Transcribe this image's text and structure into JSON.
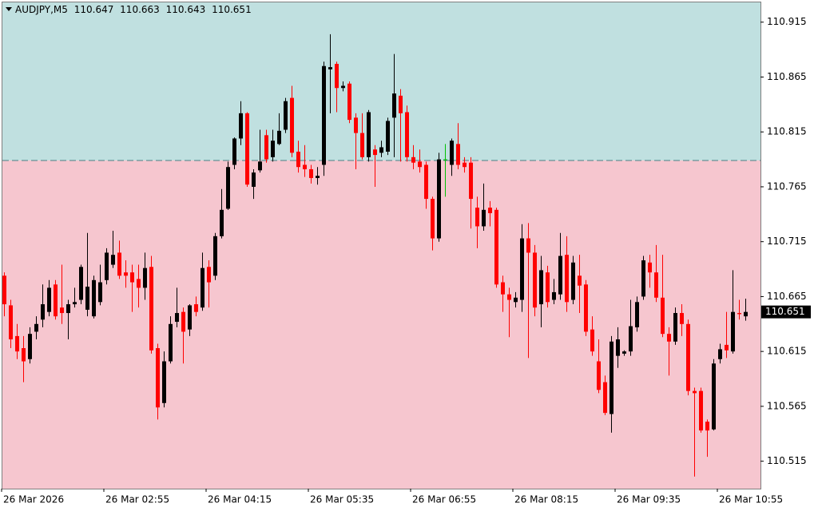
{
  "chart_data": {
    "type": "candlestick",
    "title": "AUDJPY,M5",
    "ylim": [
      110.49,
      110.933
    ],
    "yticks": [
      110.915,
      110.865,
      110.815,
      110.765,
      110.715,
      110.665,
      110.615,
      110.565,
      110.515
    ],
    "xticks": [
      {
        "value": 0,
        "label": "26 Mar 2026"
      },
      {
        "value": 16,
        "label": "26 Mar 02:55"
      },
      {
        "value": 32,
        "label": "26 Mar 04:15"
      },
      {
        "value": 48,
        "label": "26 Mar 05:35"
      },
      {
        "value": 64,
        "label": "26 Mar 06:55"
      },
      {
        "value": 80,
        "label": "26 Mar 08:15"
      },
      {
        "value": 96,
        "label": "26 Mar 09:35"
      },
      {
        "value": 112,
        "label": "26 Mar 10:55"
      }
    ],
    "level": 110.789,
    "above_color": "#c0e0e0",
    "below_color": "#f6c6cf",
    "up_color": "#000000",
    "down_color": "#ff0000",
    "doji_color": "#00c000",
    "open": [
      110.684,
      110.657,
      110.629,
      110.618,
      110.608,
      110.633,
      110.644,
      110.651,
      110.676,
      110.655,
      110.65,
      110.658,
      110.662,
      110.653,
      110.647,
      110.66,
      110.68,
      110.694,
      110.705,
      110.687,
      110.687,
      110.681,
      110.673,
      110.692,
      110.618,
      110.568,
      110.606,
      110.642,
      110.651,
      110.635,
      110.658,
      110.655,
      110.692,
      110.684,
      110.72,
      110.745,
      110.785,
      110.809,
      110.832,
      110.765,
      110.78,
      110.812,
      110.792,
      110.804,
      110.817,
      110.846,
      110.797,
      110.785,
      110.781,
      110.773,
      110.785,
      110.872,
      110.877,
      110.855,
      110.859,
      110.828,
      110.814,
      110.792,
      110.799,
      110.796,
      110.797,
      110.828,
      110.848,
      110.833,
      110.792,
      110.788,
      110.785,
      110.754,
      110.718,
      110.79,
      110.785,
      110.804,
      110.787,
      110.787,
      110.746,
      110.729,
      110.746,
      110.744,
      110.678,
      110.667,
      110.66,
      110.662,
      110.718,
      110.705,
      110.658,
      110.687,
      110.662,
      110.667,
      110.703,
      110.662,
      110.684,
      110.676,
      110.635,
      110.606,
      110.587,
      110.558,
      110.611,
      110.613,
      110.615,
      110.637,
      110.665,
      110.696,
      110.687,
      110.664,
      110.631,
      110.624,
      110.65,
      110.64,
      110.579,
      110.579,
      110.551,
      110.544,
      110.608,
      110.621,
      110.615,
      110.65,
      110.647
    ],
    "high": [
      110.687,
      110.662,
      110.64,
      110.629,
      110.637,
      110.647,
      110.676,
      110.68,
      110.68,
      110.694,
      110.662,
      110.673,
      110.694,
      110.723,
      110.684,
      110.694,
      110.709,
      110.725,
      110.716,
      110.698,
      110.694,
      110.694,
      110.705,
      110.702,
      110.622,
      110.615,
      110.647,
      110.673,
      110.655,
      110.658,
      110.665,
      110.705,
      110.698,
      110.723,
      110.763,
      110.788,
      110.81,
      110.843,
      110.833,
      110.781,
      110.817,
      110.817,
      110.817,
      110.832,
      110.846,
      110.857,
      110.807,
      110.803,
      110.785,
      110.783,
      110.879,
      110.904,
      110.879,
      110.861,
      110.861,
      110.832,
      110.832,
      110.835,
      110.803,
      110.807,
      110.828,
      110.886,
      110.854,
      110.839,
      110.803,
      110.799,
      110.788,
      110.756,
      110.796,
      110.804,
      110.809,
      110.823,
      110.792,
      110.792,
      110.756,
      110.768,
      110.752,
      110.746,
      110.684,
      110.673,
      110.669,
      110.731,
      110.732,
      110.712,
      110.702,
      110.693,
      110.681,
      110.723,
      110.72,
      110.702,
      110.703,
      110.68,
      110.647,
      110.626,
      110.593,
      110.629,
      110.637,
      110.616,
      110.662,
      110.665,
      110.702,
      110.703,
      110.712,
      110.703,
      110.637,
      110.655,
      110.658,
      110.644,
      110.582,
      110.582,
      110.553,
      110.608,
      110.622,
      110.651,
      110.689,
      110.662,
      110.663
    ],
    "low": [
      110.647,
      110.618,
      110.608,
      110.587,
      110.604,
      110.626,
      110.637,
      110.647,
      110.644,
      110.64,
      110.626,
      110.655,
      110.658,
      110.647,
      110.645,
      110.657,
      110.676,
      110.691,
      110.681,
      110.673,
      110.651,
      110.655,
      110.662,
      110.613,
      110.553,
      110.564,
      110.604,
      110.637,
      110.604,
      110.629,
      110.647,
      110.652,
      110.655,
      110.68,
      110.718,
      110.744,
      110.781,
      110.803,
      110.765,
      110.754,
      110.778,
      110.787,
      110.788,
      110.803,
      110.814,
      110.792,
      110.778,
      110.774,
      110.768,
      110.767,
      110.775,
      110.832,
      110.833,
      110.852,
      110.823,
      110.781,
      110.79,
      110.788,
      110.765,
      110.792,
      110.794,
      110.792,
      110.788,
      110.788,
      110.781,
      110.778,
      110.745,
      110.707,
      110.715,
      110.756,
      110.775,
      110.781,
      110.778,
      110.727,
      110.709,
      110.725,
      110.729,
      110.673,
      110.651,
      110.628,
      110.655,
      110.651,
      110.609,
      110.647,
      110.637,
      110.655,
      110.658,
      110.662,
      110.651,
      110.658,
      110.65,
      110.629,
      110.611,
      110.577,
      110.557,
      110.541,
      110.6,
      110.611,
      110.611,
      110.633,
      110.662,
      110.673,
      110.66,
      110.628,
      110.593,
      110.621,
      110.629,
      110.575,
      110.501,
      110.541,
      110.519,
      110.543,
      110.604,
      110.609,
      110.613,
      110.644,
      110.643
    ],
    "close": [
      110.658,
      110.626,
      110.615,
      110.606,
      110.631,
      110.64,
      110.658,
      110.673,
      110.647,
      110.65,
      110.658,
      110.66,
      110.692,
      110.674,
      110.68,
      110.678,
      110.705,
      110.703,
      110.684,
      110.684,
      110.678,
      110.673,
      110.691,
      110.616,
      110.564,
      110.606,
      110.64,
      110.65,
      110.633,
      110.657,
      110.651,
      110.691,
      110.678,
      110.72,
      110.744,
      110.783,
      110.809,
      110.832,
      110.767,
      110.778,
      110.788,
      110.79,
      110.807,
      110.816,
      110.843,
      110.796,
      110.783,
      110.781,
      110.773,
      110.775,
      110.875,
      110.874,
      110.855,
      110.857,
      110.826,
      110.814,
      110.792,
      110.833,
      110.794,
      110.801,
      110.825,
      110.85,
      110.832,
      110.792,
      110.787,
      110.783,
      110.754,
      110.718,
      110.79,
      110.79,
      110.807,
      110.785,
      110.783,
      110.754,
      110.729,
      110.744,
      110.741,
      110.676,
      110.667,
      110.662,
      110.664,
      110.718,
      110.705,
      110.655,
      110.689,
      110.66,
      110.669,
      110.702,
      110.66,
      110.696,
      110.675,
      110.633,
      110.615,
      110.58,
      110.559,
      110.624,
      110.626,
      110.615,
      110.638,
      110.66,
      110.698,
      110.687,
      110.664,
      110.631,
      110.624,
      110.65,
      110.64,
      110.579,
      110.577,
      110.543,
      110.543,
      110.604,
      110.617,
      110.616,
      110.651,
      110.649,
      110.651
    ]
  }
}
